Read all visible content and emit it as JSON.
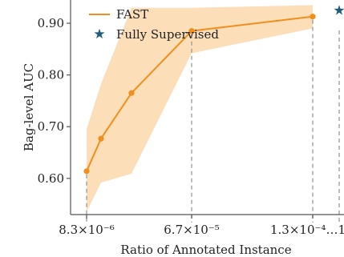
{
  "chart_data": {
    "type": "line",
    "xlabel": "Ratio of Annotated Instance",
    "ylabel": "Bag-level AUC",
    "x_tick_labels": [
      "8.3×10⁻⁶",
      "6.7×10⁻⁵",
      "1.3×10⁻⁴…1"
    ],
    "y_ticks": [
      0.6,
      0.7,
      0.8,
      0.9
    ],
    "y_tick_labels": [
      "0.60",
      "0.70",
      "0.80",
      "0.90"
    ],
    "ylim": [
      0.53,
      0.945
    ],
    "grid": false,
    "legend_position": "top-left",
    "colors": {
      "fast": "#f28e1c",
      "band": "#fbd8ad",
      "supervised": "#1f5b7a",
      "axis": "#555555",
      "guide": "#9a9a9a"
    },
    "series": [
      {
        "name": "FAST",
        "points": [
          {
            "x": "8.3×10⁻⁶",
            "y": 0.614
          },
          {
            "x": "",
            "y": 0.677
          },
          {
            "x": "",
            "y": 0.765
          },
          {
            "x": "6.7×10⁻⁵",
            "y": 0.885
          },
          {
            "x": "1.3×10⁻⁴",
            "y": 0.913
          }
        ],
        "band_upper": [
          0.695,
          0.783,
          0.93,
          0.93,
          0.935
        ],
        "band_lower": [
          0.535,
          0.592,
          0.609,
          0.842,
          0.89
        ]
      },
      {
        "name": "Fully Supervised",
        "marker": "star",
        "points": [
          {
            "x": "1",
            "y": 0.926
          }
        ]
      }
    ]
  }
}
